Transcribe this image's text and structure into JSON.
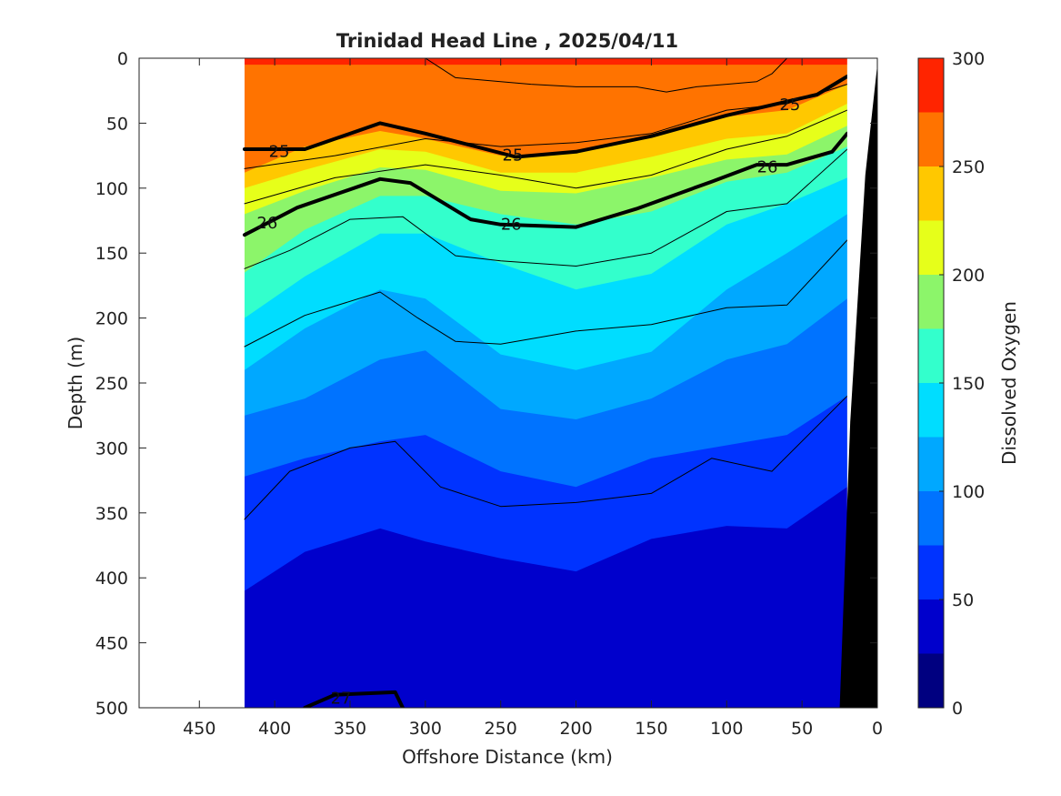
{
  "chart_data": {
    "type": "heatmap",
    "title": "Trinidad Head Line , 2025/04/11",
    "xlabel": "Offshore Distance (km)",
    "ylabel": "Depth (m)",
    "colorbar_label": "Dissolved Oxygen",
    "x_reversed": true,
    "y_reversed": true,
    "xlim": [
      490,
      0
    ],
    "ylim": [
      0,
      500
    ],
    "xticks": [
      450,
      400,
      350,
      300,
      250,
      200,
      150,
      100,
      50,
      0
    ],
    "yticks": [
      0,
      50,
      100,
      150,
      200,
      250,
      300,
      350,
      400,
      450,
      500
    ],
    "data_x_range": [
      420,
      20
    ],
    "colorbar": {
      "ticks": [
        0,
        50,
        100,
        150,
        200,
        250,
        300
      ],
      "levels": [
        0,
        25,
        50,
        75,
        100,
        125,
        150,
        175,
        200,
        225,
        250,
        275,
        300
      ],
      "colors": [
        "#000080",
        "#0000CC",
        "#0033FF",
        "#0073FF",
        "#00A8FF",
        "#00DDFF",
        "#33FFCC",
        "#8CF56A",
        "#E6FF1A",
        "#FFC800",
        "#FF7300",
        "#FF2400",
        "#CC0000"
      ]
    },
    "oxygen_boundaries": [
      {
        "level": 275,
        "x": [
          420,
          300,
          200,
          100,
          20
        ],
        "depth": [
          5,
          5,
          5,
          5,
          5
        ]
      },
      {
        "level": 250,
        "x": [
          420,
          380,
          330,
          300,
          250,
          200,
          150,
          100,
          60,
          20
        ],
        "depth": [
          88,
          68,
          56,
          62,
          75,
          72,
          60,
          45,
          40,
          20
        ]
      },
      {
        "level": 225,
        "x": [
          420,
          380,
          330,
          300,
          250,
          200,
          150,
          100,
          60,
          20
        ],
        "depth": [
          100,
          86,
          70,
          72,
          88,
          88,
          76,
          62,
          58,
          35
        ]
      },
      {
        "level": 200,
        "x": [
          420,
          380,
          330,
          300,
          250,
          200,
          150,
          100,
          60,
          20
        ],
        "depth": [
          120,
          102,
          84,
          86,
          102,
          104,
          92,
          78,
          74,
          52
        ]
      },
      {
        "level": 175,
        "x": [
          420,
          380,
          330,
          300,
          250,
          200,
          150,
          100,
          60,
          20
        ],
        "depth": [
          165,
          132,
          106,
          106,
          120,
          128,
          118,
          95,
          88,
          68
        ]
      },
      {
        "level": 150,
        "x": [
          420,
          380,
          330,
          300,
          250,
          200,
          150,
          100,
          60,
          20
        ],
        "depth": [
          200,
          168,
          135,
          135,
          158,
          178,
          166,
          128,
          112,
          92
        ]
      },
      {
        "level": 125,
        "x": [
          420,
          380,
          330,
          300,
          250,
          200,
          150,
          100,
          60,
          20
        ],
        "depth": [
          240,
          208,
          178,
          185,
          228,
          240,
          226,
          178,
          150,
          120
        ]
      },
      {
        "level": 100,
        "x": [
          420,
          380,
          330,
          300,
          250,
          200,
          150,
          100,
          60,
          20
        ],
        "depth": [
          275,
          262,
          232,
          225,
          270,
          278,
          262,
          232,
          220,
          185
        ]
      },
      {
        "level": 75,
        "x": [
          420,
          380,
          330,
          300,
          250,
          200,
          150,
          100,
          60,
          20
        ],
        "depth": [
          322,
          308,
          295,
          290,
          318,
          330,
          308,
          298,
          290,
          260
        ]
      },
      {
        "level": 50,
        "x": [
          420,
          380,
          330,
          300,
          250,
          200,
          150,
          100,
          60,
          20
        ],
        "depth": [
          410,
          380,
          362,
          372,
          385,
          395,
          370,
          360,
          362,
          330
        ]
      },
      {
        "level": 25,
        "x": [
          420,
          380,
          330,
          300,
          250,
          200,
          150,
          100,
          60,
          20
        ],
        "depth": [
          500,
          500,
          500,
          500,
          500,
          500,
          500,
          500,
          500,
          500
        ]
      }
    ],
    "density_contours": [
      {
        "label": "25",
        "bold": true,
        "x": [
          420,
          380,
          330,
          300,
          240,
          200,
          150,
          100,
          70,
          40,
          20
        ],
        "depth": [
          70,
          70,
          50,
          58,
          76,
          72,
          60,
          44,
          36,
          28,
          14
        ]
      },
      {
        "label": "26",
        "bold": true,
        "x": [
          420,
          385,
          330,
          310,
          270,
          250,
          200,
          160,
          110,
          80,
          60,
          30,
          20
        ],
        "depth": [
          136,
          115,
          93,
          96,
          124,
          128,
          130,
          116,
          95,
          82,
          82,
          72,
          58
        ]
      },
      {
        "label": "27",
        "bold": true,
        "x": [
          380,
          360,
          320,
          315
        ],
        "depth": [
          500,
          490,
          488,
          500
        ]
      },
      {
        "label": "",
        "bold": false,
        "x": [
          420,
          360,
          300,
          250,
          200,
          150,
          100,
          60,
          20
        ],
        "depth": [
          85,
          75,
          62,
          68,
          65,
          58,
          40,
          35,
          20
        ]
      },
      {
        "label": "",
        "bold": false,
        "x": [
          420,
          360,
          300,
          250,
          200,
          150,
          100,
          60,
          20
        ],
        "depth": [
          112,
          92,
          82,
          90,
          100,
          90,
          70,
          60,
          40
        ]
      },
      {
        "label": "",
        "bold": false,
        "x": [
          420,
          390,
          350,
          315,
          280,
          250,
          200,
          150,
          100,
          60,
          20
        ],
        "depth": [
          162,
          148,
          124,
          122,
          152,
          156,
          160,
          150,
          118,
          112,
          70
        ]
      },
      {
        "label": "",
        "bold": false,
        "x": [
          420,
          380,
          330,
          305,
          280,
          250,
          200,
          150,
          100,
          60,
          20
        ],
        "depth": [
          222,
          198,
          180,
          200,
          218,
          220,
          210,
          205,
          192,
          190,
          140
        ]
      },
      {
        "label": "",
        "bold": false,
        "x": [
          420,
          390,
          350,
          320,
          290,
          250,
          200,
          150,
          110,
          70,
          20
        ],
        "depth": [
          355,
          318,
          300,
          295,
          330,
          345,
          342,
          335,
          308,
          318,
          260
        ]
      },
      {
        "label": "",
        "bold": false,
        "x": [
          300,
          280,
          250,
          230,
          200,
          160,
          140,
          120,
          100,
          80,
          70,
          60,
          40
        ],
        "depth": [
          0,
          15,
          18,
          20,
          22,
          22,
          26,
          22,
          20,
          18,
          12,
          0,
          0
        ]
      }
    ],
    "bathymetry": {
      "x": [
        20,
        10,
        0
      ],
      "depth_surface": [
        0,
        0,
        0
      ],
      "depth_shore_edge": [
        500,
        280,
        0
      ]
    }
  }
}
